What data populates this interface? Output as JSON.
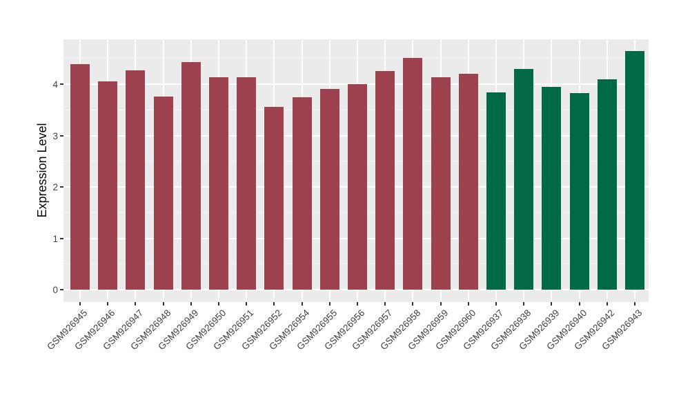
{
  "figure": {
    "panel_background": "#EBEBEB",
    "gridline_color": "#FFFFFF",
    "axis_text_color": "#404040",
    "axis_title_color": "#000000"
  },
  "chart_data": {
    "type": "bar",
    "title": "",
    "xlabel": "",
    "ylabel": "Expression Level",
    "categories": [
      "GSM926945",
      "GSM926946",
      "GSM926947",
      "GSM926948",
      "GSM926949",
      "GSM926950",
      "GSM926951",
      "GSM926952",
      "GSM926954",
      "GSM926955",
      "GSM926956",
      "GSM926957",
      "GSM926958",
      "GSM926959",
      "GSM926960",
      "GSM926937",
      "GSM926938",
      "GSM926939",
      "GSM926940",
      "GSM926942",
      "GSM926943"
    ],
    "values": [
      4.39,
      4.05,
      4.27,
      3.76,
      4.43,
      4.13,
      4.14,
      3.56,
      3.74,
      3.9,
      4.0,
      4.25,
      4.51,
      4.13,
      4.2,
      3.84,
      4.29,
      3.94,
      3.83,
      4.1,
      4.64
    ],
    "groups": [
      "maroon",
      "maroon",
      "maroon",
      "maroon",
      "maroon",
      "maroon",
      "maroon",
      "maroon",
      "maroon",
      "maroon",
      "maroon",
      "maroon",
      "maroon",
      "maroon",
      "maroon",
      "green",
      "green",
      "green",
      "green",
      "green",
      "green"
    ],
    "group_colors": {
      "maroon": "#9E4250",
      "green": "#006946"
    },
    "ytick_labels": [
      "0",
      "1",
      "2",
      "3",
      "4"
    ],
    "yticks": [
      0,
      1,
      2,
      3,
      4
    ],
    "yticks_minor": [
      0.5,
      1.5,
      2.5,
      3.5,
      4.5
    ],
    "ylim": [
      -0.24,
      4.87
    ],
    "grid": "on",
    "legend": "none",
    "x_tick_rotation_deg": 45
  }
}
